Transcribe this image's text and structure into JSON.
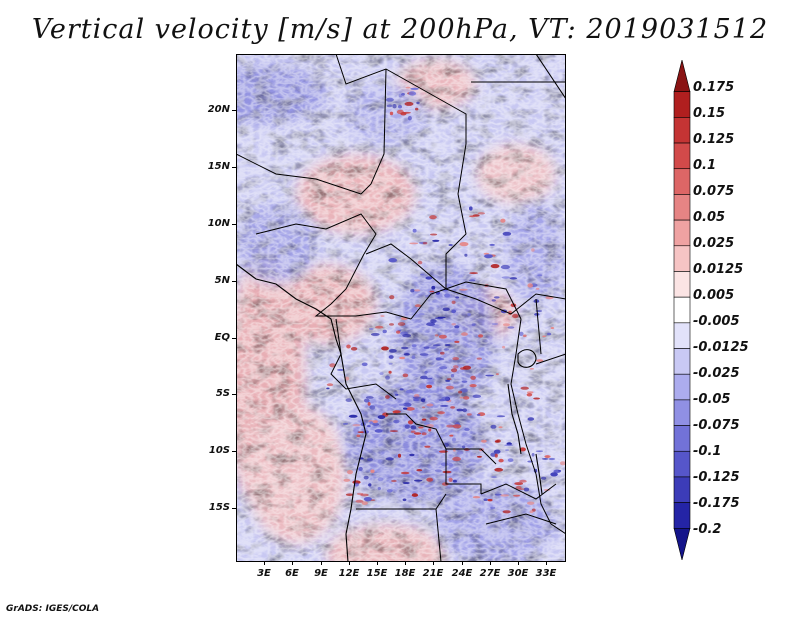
{
  "title": "Vertical velocity [m/s] at 200hPa, VT: 2019031512",
  "map": {
    "lat_labels": [
      "20N",
      "15N",
      "10N",
      "5N",
      "EQ",
      "5S",
      "10S",
      "15S"
    ],
    "lon_labels": [
      "3E",
      "6E",
      "9E",
      "12E",
      "15E",
      "18E",
      "21E",
      "24E",
      "27E",
      "30E",
      "33E"
    ],
    "lat_range": [
      -20.5,
      24
    ],
    "lon_range": [
      0,
      35
    ],
    "field": "vertical velocity",
    "units": "m/s",
    "level": "200hPa"
  },
  "colorbar": {
    "labels": [
      "0.175",
      "0.15",
      "0.125",
      "0.1",
      "0.075",
      "0.05",
      "0.025",
      "0.0125",
      "0.005",
      "-0.005",
      "-0.0125",
      "-0.025",
      "-0.05",
      "-0.075",
      "-0.1",
      "-0.125",
      "-0.175",
      "-0.2"
    ],
    "colors": [
      "#8a1414",
      "#b01f1f",
      "#c43434",
      "#d24a4a",
      "#dd6666",
      "#e68484",
      "#efa2a2",
      "#f6c4c4",
      "#fbe4e4",
      "#ffffff",
      "#e2e2fa",
      "#c9c9f4",
      "#acacee",
      "#9090e4",
      "#7272d8",
      "#5656ca",
      "#3c3cb8",
      "#2424a6",
      "#14148a"
    ]
  },
  "credit": "GrADS: IGES/COLA"
}
